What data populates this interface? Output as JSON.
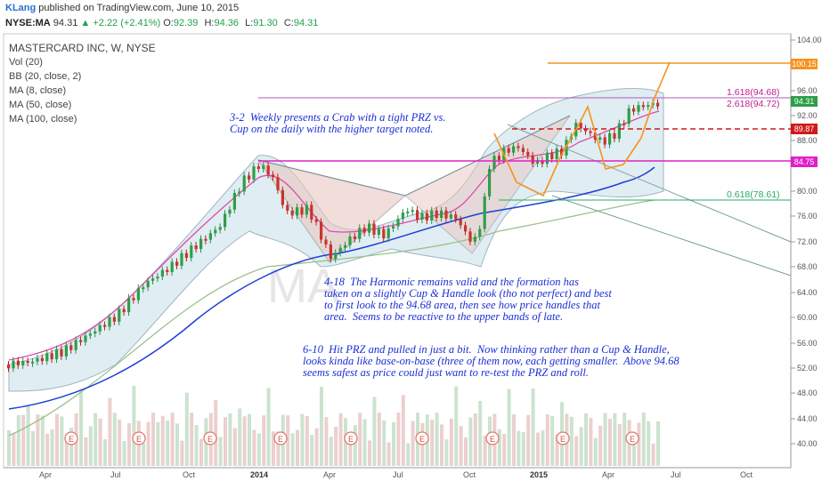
{
  "header": {
    "user": "KLang",
    "published": "published on TradingView.com, June 10, 2015",
    "symbol": "NYSE:MA",
    "last": "94.31",
    "arrow": "▲",
    "change": "+2.22 (+2.41%)",
    "ohlc": [
      {
        "k": "O:",
        "v": "92.39"
      },
      {
        "k": "H:",
        "v": "94.36"
      },
      {
        "k": "L:",
        "v": "91.30"
      },
      {
        "k": "C:",
        "v": "94.31"
      }
    ]
  },
  "legend": {
    "title": "MASTERCARD INC, W, NYSE",
    "indicators": [
      "Vol (20)",
      "BB (20, close, 2)",
      "MA (8, close)",
      "MA (50, close)",
      "MA (100, close)"
    ]
  },
  "watermark": "MA",
  "notes": {
    "n1": "3-2  Weekly presents a Crab with a tight PRZ vs.\nCup on the daily with the higher target noted.",
    "n2": "4-18  The Harmonic remains valid and the formation has\ntaken on a slightly Cup & Handle look (tho not perfect) and best\nto first look to the 94.68 area, then see how price handles that\narea.  Seems to be reactive to the upper bands of late.",
    "n3": "6-10  Hit PRZ and pulled in just a bit.  Now thinking rather than a Cup & Handle,\nlooks kinda like base-on-base (three of them now, each getting smaller.  Above 94.68\nseems safest as price could just want to re-test the PRZ and roll."
  },
  "fib_labels": {
    "f1": "1.618(94.68)",
    "f2": "2.618(94.72)",
    "f3": "0.618(78.61)"
  },
  "price_tags": {
    "t1": "100.15",
    "t2": "94.31",
    "t3": "89.87",
    "t4": "84.75"
  },
  "colors": {
    "tag_orange": "#f7931e",
    "tag_green": "#2e9e47",
    "tag_red": "#d11a1a",
    "tag_magenta": "#e020c8",
    "fib_magenta": "#c0208e",
    "fib_green": "#2aa86a",
    "text_blue": "#1a2fd6"
  },
  "y_axis": [
    "104.00",
    "96.00",
    "92.00",
    "88.00",
    "80.00",
    "76.00",
    "72.00",
    "68.00",
    "64.00",
    "60.00",
    "56.00",
    "52.00",
    "48.00",
    "44.00",
    "40.00"
  ],
  "x_axis": [
    "Apr",
    "Jul",
    "Oct",
    "2014",
    "Apr",
    "Jul",
    "Oct",
    "2015",
    "Apr",
    "Jul",
    "Oct"
  ],
  "earnings_marker": "E"
}
